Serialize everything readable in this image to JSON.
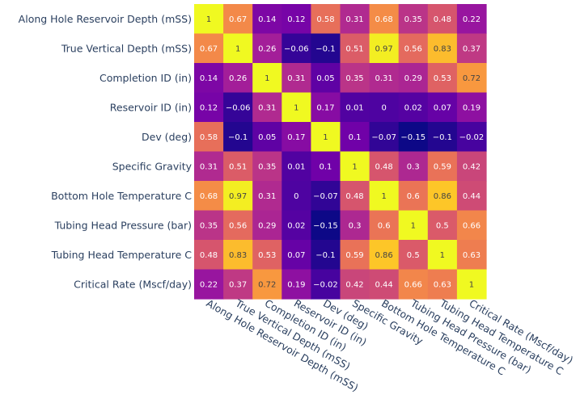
{
  "chart_data": {
    "type": "heatmap",
    "colorscale": "plasma",
    "zlim": [
      -0.15,
      1
    ],
    "x": [
      "Along Hole Reservoir Depth (mSS)",
      "True Vertical Depth (mSS)",
      "Completion ID (in)",
      "Reservoir ID (in)",
      "Dev (deg)",
      "Specific Gravity",
      "Bottom Hole Temperature C",
      "Tubing Head Pressure (bar)",
      "Tubing Head Temperature C",
      "Critical Rate (Mscf/day)"
    ],
    "y": [
      "Along Hole Reservoir Depth (mSS)",
      "True Vertical Depth (mSS)",
      "Completion ID (in)",
      "Reservoir ID (in)",
      "Dev (deg)",
      "Specific Gravity",
      "Bottom Hole Temperature C",
      "Tubing Head Pressure (bar)",
      "Tubing Head Temperature C",
      "Critical Rate (Mscf/day)"
    ],
    "z": [
      [
        1,
        0.67,
        0.14,
        0.12,
        0.58,
        0.31,
        0.68,
        0.35,
        0.48,
        0.22
      ],
      [
        0.67,
        1,
        0.26,
        -0.06,
        -0.1,
        0.51,
        0.97,
        0.56,
        0.83,
        0.37
      ],
      [
        0.14,
        0.26,
        1,
        0.31,
        0.05,
        0.35,
        0.31,
        0.29,
        0.53,
        0.72
      ],
      [
        0.12,
        -0.06,
        0.31,
        1,
        0.17,
        0.01,
        0,
        0.02,
        0.07,
        0.19
      ],
      [
        0.58,
        -0.1,
        0.05,
        0.17,
        1,
        0.1,
        -0.07,
        -0.15,
        -0.1,
        -0.02
      ],
      [
        0.31,
        0.51,
        0.35,
        0.01,
        0.1,
        1,
        0.48,
        0.3,
        0.59,
        0.42
      ],
      [
        0.68,
        0.97,
        0.31,
        0,
        -0.07,
        0.48,
        1,
        0.6,
        0.86,
        0.44
      ],
      [
        0.35,
        0.56,
        0.29,
        0.02,
        -0.15,
        0.3,
        0.6,
        1,
        0.5,
        0.66
      ],
      [
        0.48,
        0.83,
        0.53,
        0.07,
        -0.1,
        0.59,
        0.86,
        0.5,
        1,
        0.63
      ],
      [
        0.22,
        0.37,
        0.72,
        0.19,
        -0.02,
        0.42,
        0.44,
        0.66,
        0.63,
        1
      ]
    ],
    "text": [
      [
        "1",
        "0.67",
        "0.14",
        "0.12",
        "0.58",
        "0.31",
        "0.68",
        "0.35",
        "0.48",
        "0.22"
      ],
      [
        "0.67",
        "1",
        "0.26",
        "−0.06",
        "−0.1",
        "0.51",
        "0.97",
        "0.56",
        "0.83",
        "0.37"
      ],
      [
        "0.14",
        "0.26",
        "1",
        "0.31",
        "0.05",
        "0.35",
        "0.31",
        "0.29",
        "0.53",
        "0.72"
      ],
      [
        "0.12",
        "−0.06",
        "0.31",
        "1",
        "0.17",
        "0.01",
        "0",
        "0.02",
        "0.07",
        "0.19"
      ],
      [
        "0.58",
        "−0.1",
        "0.05",
        "0.17",
        "1",
        "0.1",
        "−0.07",
        "−0.15",
        "−0.1",
        "−0.02"
      ],
      [
        "0.31",
        "0.51",
        "0.35",
        "0.01",
        "0.1",
        "1",
        "0.48",
        "0.3",
        "0.59",
        "0.42"
      ],
      [
        "0.68",
        "0.97",
        "0.31",
        "0",
        "−0.07",
        "0.48",
        "1",
        "0.6",
        "0.86",
        "0.44"
      ],
      [
        "0.35",
        "0.56",
        "0.29",
        "0.02",
        "−0.15",
        "0.3",
        "0.6",
        "1",
        "0.5",
        "0.66"
      ],
      [
        "0.48",
        "0.83",
        "0.53",
        "0.07",
        "−0.1",
        "0.59",
        "0.86",
        "0.5",
        "1",
        "0.63"
      ],
      [
        "0.22",
        "0.37",
        "0.72",
        "0.19",
        "−0.02",
        "0.42",
        "0.44",
        "0.66",
        "0.63",
        "1"
      ]
    ],
    "title": "",
    "xlabel": "",
    "ylabel": "",
    "legend": "none",
    "grid": false
  }
}
